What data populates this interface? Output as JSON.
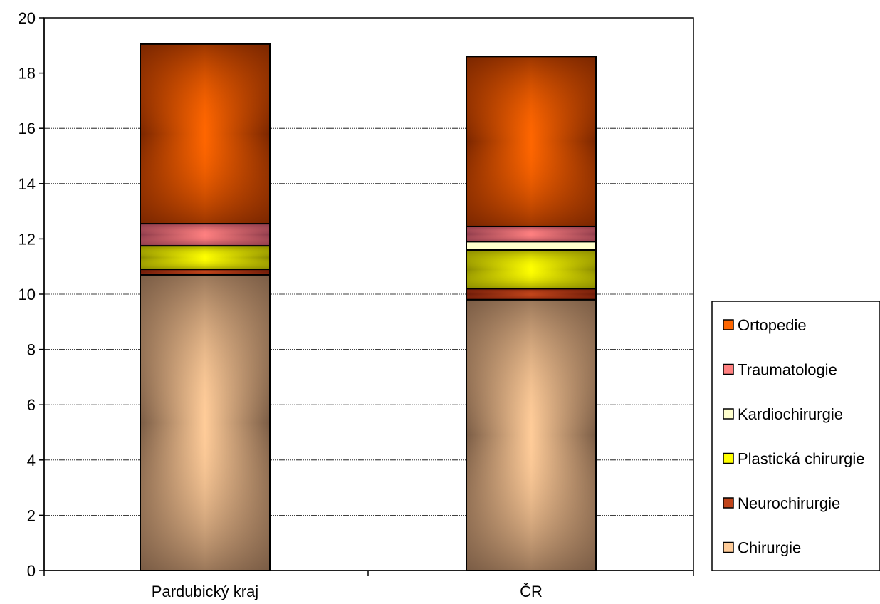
{
  "chart_data": {
    "type": "bar",
    "stacked": true,
    "categories": [
      "Pardubický kraj",
      "ČR"
    ],
    "series": [
      {
        "name": "Chirurgie",
        "values": [
          10.7,
          9.8
        ],
        "color": "#FFCC99",
        "edge_color": "#7A5C45"
      },
      {
        "name": "Neurochirurgie",
        "values": [
          0.2,
          0.4
        ],
        "color": "#C0441A",
        "edge_color": "#6B1A08"
      },
      {
        "name": "Plastická chirurgie",
        "values": [
          0.85,
          1.4
        ],
        "color": "#FFFF00",
        "edge_color": "#8A8A00"
      },
      {
        "name": "Kardiochirurgie",
        "values": [
          0.0,
          0.3
        ],
        "color": "#FFFFCC",
        "edge_color": "#FFFFCC"
      },
      {
        "name": "Traumatologie",
        "values": [
          0.8,
          0.55
        ],
        "color": "#FF8080",
        "edge_color": "#8B3A4A"
      },
      {
        "name": "Ortopedie",
        "values": [
          6.5,
          6.15
        ],
        "color": "#FF6600",
        "edge_color": "#7A2600"
      }
    ],
    "yticks": [
      "0",
      "2",
      "4",
      "6",
      "8",
      "10",
      "12",
      "14",
      "16",
      "18",
      "20"
    ],
    "ylim": [
      0,
      20
    ],
    "xlabel": "",
    "ylabel": "",
    "title": "",
    "grid": true,
    "legend_position": "right"
  }
}
